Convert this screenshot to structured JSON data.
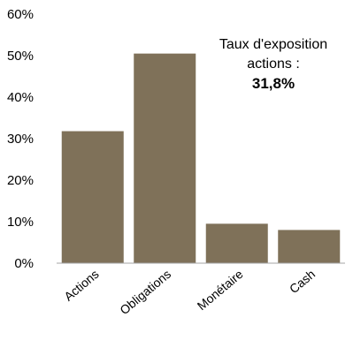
{
  "chart_data": {
    "type": "bar",
    "categories": [
      "Actions",
      "Obligations",
      "Monétaire",
      "Cash"
    ],
    "values": [
      31.8,
      50.5,
      9.5,
      8.0
    ],
    "ylim": [
      0,
      60
    ],
    "yticks": [
      "0%",
      "10%",
      "20%",
      "30%",
      "40%",
      "50%",
      "60%"
    ],
    "grid": false,
    "bar_color": "#7f7159",
    "annotation": {
      "line1": "Taux d'exposition",
      "line2": "actions :",
      "value": "31,8%"
    }
  }
}
